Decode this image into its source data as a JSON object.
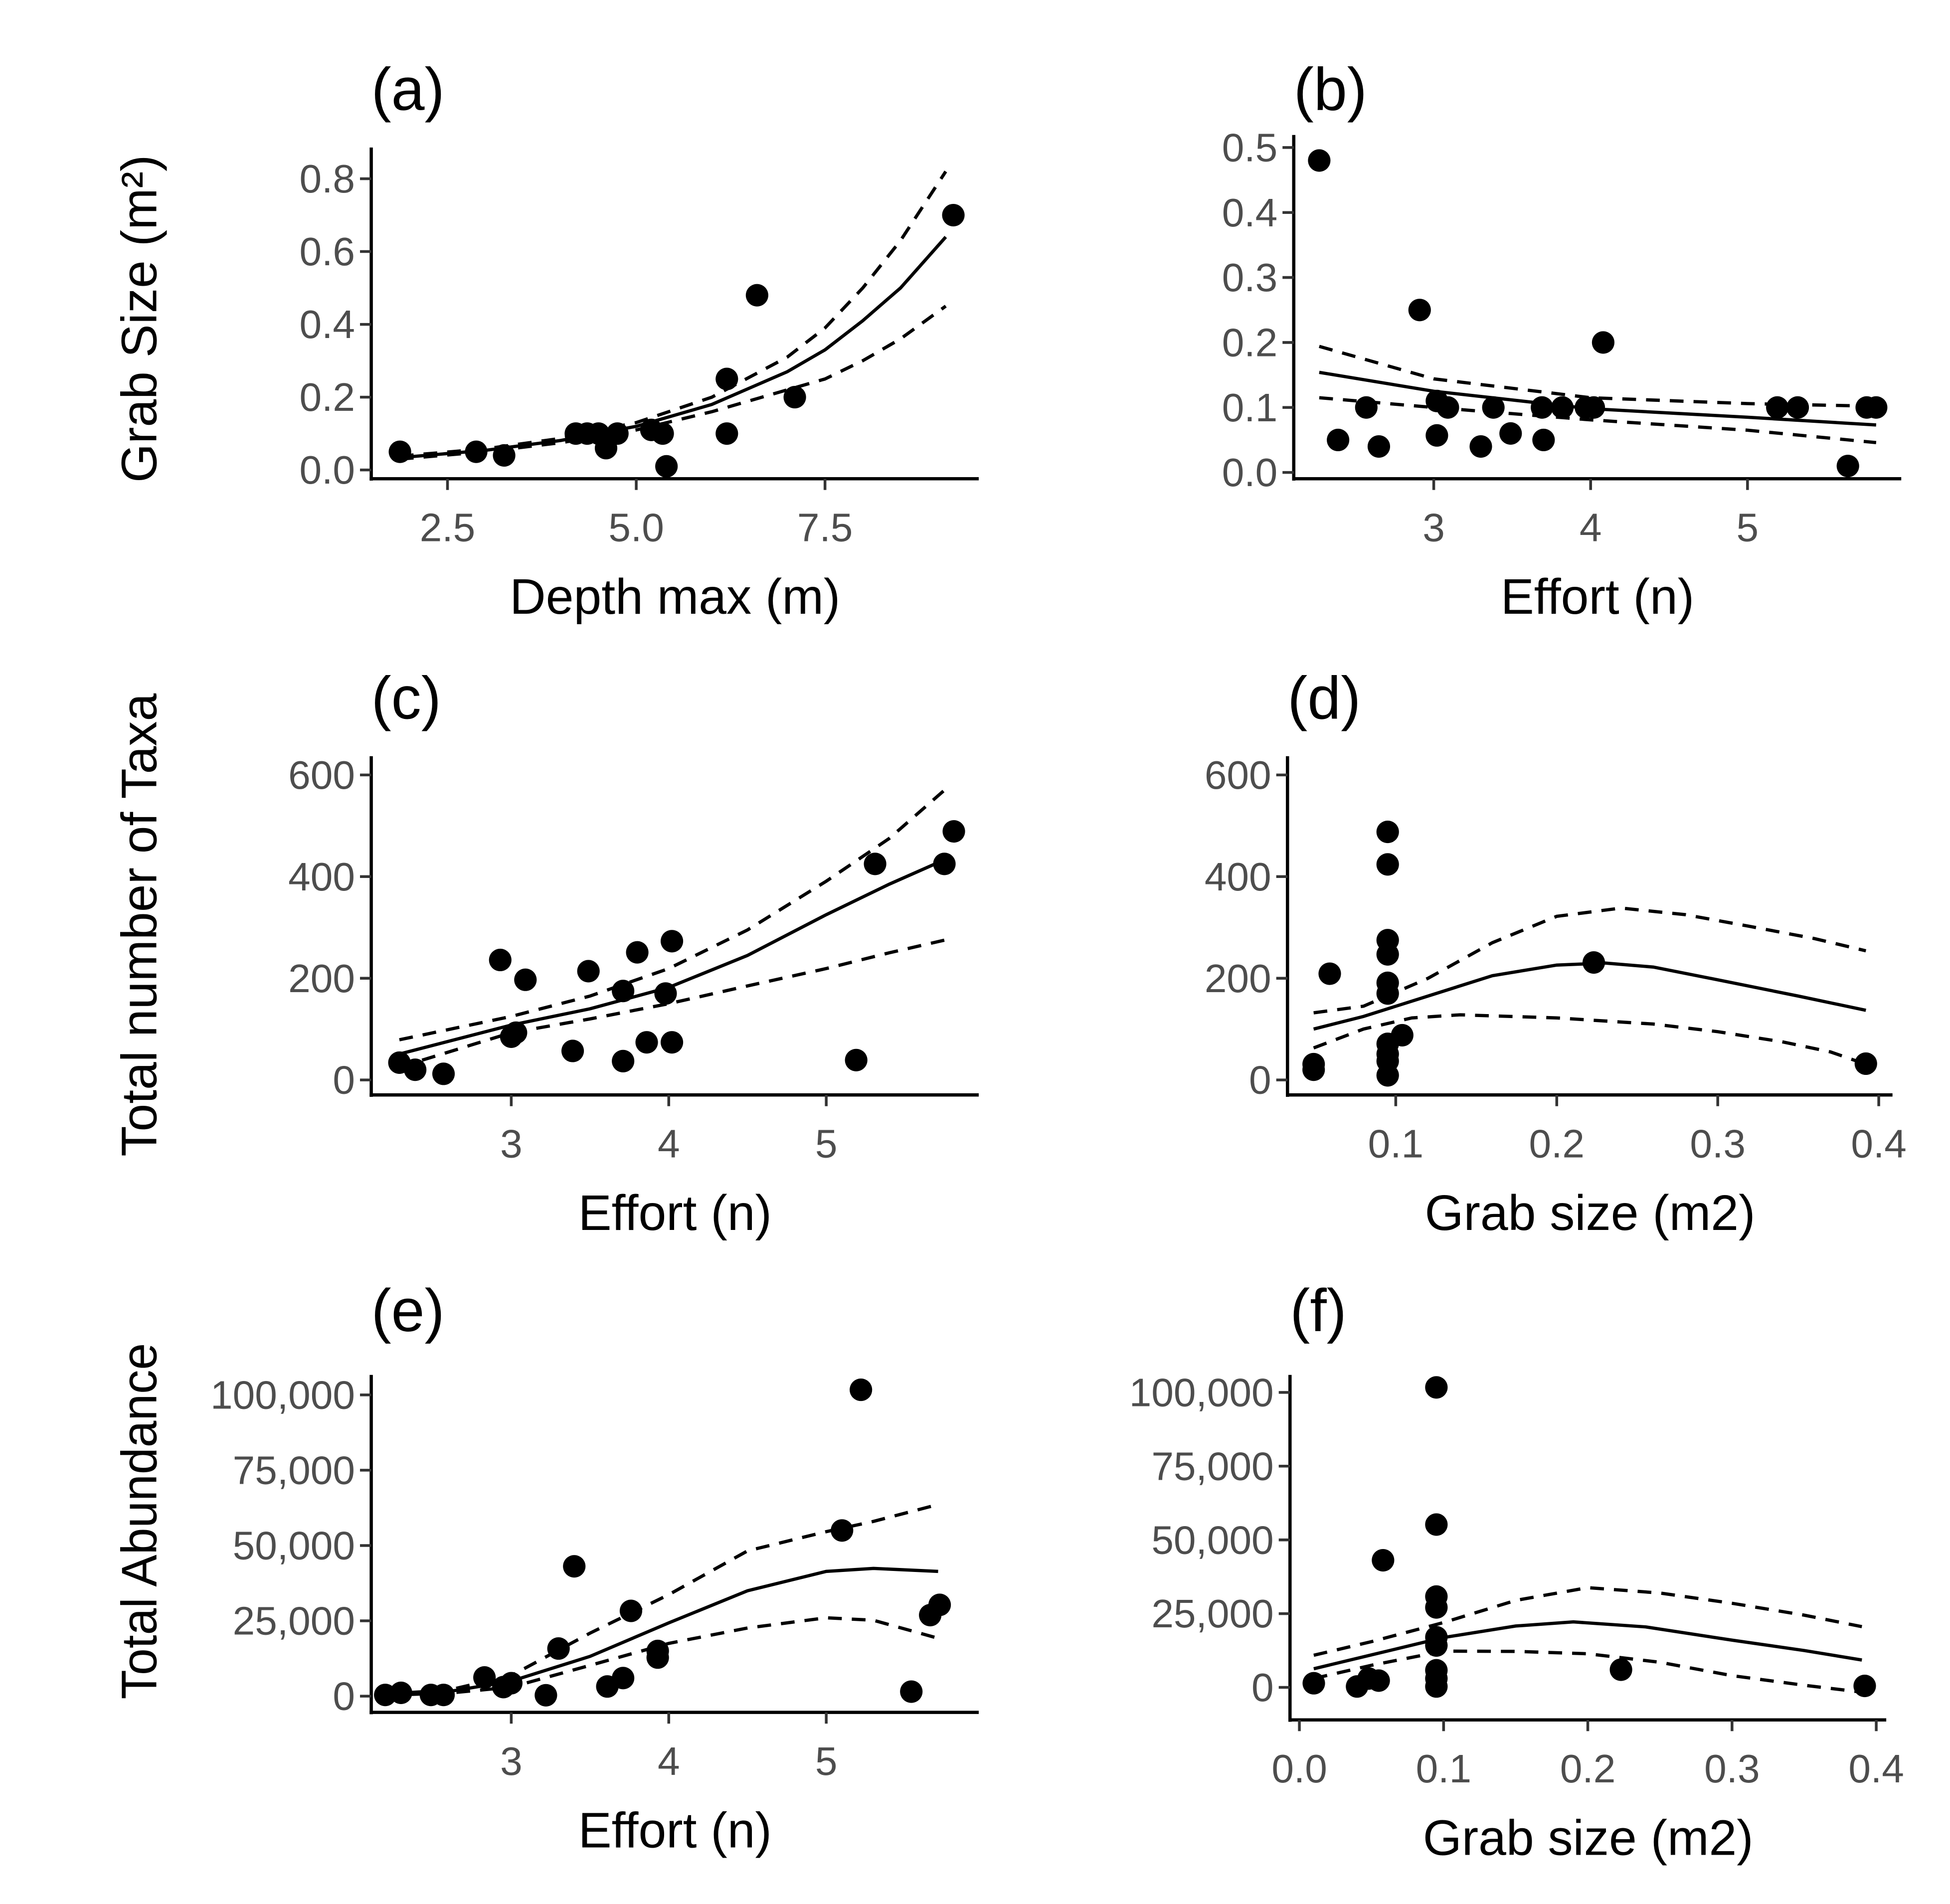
{
  "y_titles": {
    "row1": "Grab Size (m²)",
    "row2": "Total number of Taxa",
    "row3": "Total Abundance"
  },
  "colors": {
    "points": "#000000",
    "fit": "#000000",
    "tick_text": "#4d4d4d"
  },
  "chart_data": [
    {
      "type": "scatter",
      "panel_label": "(a)",
      "xlabel": "Depth max (m)",
      "ylabel": "Grab Size (m2)",
      "xticks": [
        2.5,
        5.0,
        7.5
      ],
      "xtick_labels": [
        "2.5",
        "5.0",
        "7.5"
      ],
      "yticks": [
        0,
        0.2,
        0.4,
        0.6,
        0.8
      ],
      "ytick_labels": [
        "0.0",
        "0.2",
        "0.4",
        "0.6",
        "0.8"
      ],
      "points": [
        [
          1.87,
          0.05
        ],
        [
          2.88,
          0.05
        ],
        [
          3.25,
          0.04
        ],
        [
          4.2,
          0.1
        ],
        [
          4.35,
          0.1
        ],
        [
          4.5,
          0.1
        ],
        [
          4.6,
          0.06
        ],
        [
          4.75,
          0.1
        ],
        [
          5.2,
          0.11
        ],
        [
          5.35,
          0.1
        ],
        [
          5.4,
          0.01
        ],
        [
          6.2,
          0.25
        ],
        [
          6.6,
          0.48
        ],
        [
          6.2,
          0.1
        ],
        [
          7.1,
          0.2
        ],
        [
          9.2,
          0.7
        ]
      ],
      "fit": [
        [
          1.87,
          0.034
        ],
        [
          3,
          0.054
        ],
        [
          4,
          0.081
        ],
        [
          5,
          0.12
        ],
        [
          6,
          0.18
        ],
        [
          7,
          0.27
        ],
        [
          7.5,
          0.33
        ],
        [
          8,
          0.41
        ],
        [
          8.5,
          0.5
        ],
        [
          9.1,
          0.64
        ]
      ],
      "fit_upper": [
        [
          1.87,
          0.038
        ],
        [
          3,
          0.058
        ],
        [
          4,
          0.087
        ],
        [
          5,
          0.13
        ],
        [
          6,
          0.2
        ],
        [
          7,
          0.31
        ],
        [
          7.5,
          0.39
        ],
        [
          8,
          0.5
        ],
        [
          8.5,
          0.63
        ],
        [
          9.1,
          0.82
        ]
      ],
      "fit_lower": [
        [
          1.87,
          0.03
        ],
        [
          3,
          0.05
        ],
        [
          4,
          0.075
        ],
        [
          5,
          0.11
        ],
        [
          6,
          0.16
        ],
        [
          7,
          0.22
        ],
        [
          7.5,
          0.25
        ],
        [
          8,
          0.3
        ],
        [
          8.5,
          0.36
        ],
        [
          9.1,
          0.45
        ]
      ]
    },
    {
      "type": "scatter",
      "panel_label": "(b)",
      "xlabel": "Effort (n)",
      "ylabel": "",
      "xticks": [
        3,
        4,
        5
      ],
      "xtick_labels": [
        "3",
        "4",
        "5"
      ],
      "yticks": [
        0,
        0.1,
        0.2,
        0.3,
        0.4,
        0.5
      ],
      "ytick_labels": [
        "0.0",
        "0.1",
        "0.2",
        "0.3",
        "0.4",
        "0.5"
      ],
      "points": [
        [
          2.27,
          0.48
        ],
        [
          2.39,
          0.05
        ],
        [
          2.57,
          0.1
        ],
        [
          2.65,
          0.04
        ],
        [
          2.91,
          0.25
        ],
        [
          3.02,
          0.11
        ],
        [
          3.02,
          0.057
        ],
        [
          3.09,
          0.1
        ],
        [
          3.3,
          0.04
        ],
        [
          3.38,
          0.1
        ],
        [
          3.49,
          0.06
        ],
        [
          3.69,
          0.1
        ],
        [
          3.7,
          0.05
        ],
        [
          3.82,
          0.1
        ],
        [
          3.97,
          0.1
        ],
        [
          4.08,
          0.2
        ],
        [
          4.02,
          0.1
        ],
        [
          5.19,
          0.1
        ],
        [
          5.32,
          0.1
        ],
        [
          5.64,
          0.01
        ],
        [
          5.76,
          0.1
        ],
        [
          5.82,
          0.1
        ]
      ],
      "fit": [
        [
          2.27,
          0.154
        ],
        [
          3,
          0.125
        ],
        [
          4,
          0.098
        ],
        [
          5,
          0.085
        ],
        [
          5.82,
          0.073
        ]
      ],
      "fit_upper": [
        [
          2.27,
          0.194
        ],
        [
          3,
          0.144
        ],
        [
          4,
          0.115
        ],
        [
          5,
          0.106
        ],
        [
          5.82,
          0.102
        ]
      ],
      "fit_lower": [
        [
          2.27,
          0.115
        ],
        [
          3,
          0.1
        ],
        [
          4,
          0.081
        ],
        [
          5,
          0.065
        ],
        [
          5.82,
          0.046
        ]
      ]
    },
    {
      "type": "scatter",
      "panel_label": "(c)",
      "xlabel": "Effort (n)",
      "ylabel": "Total number of Taxa",
      "xticks": [
        3,
        4,
        5
      ],
      "xtick_labels": [
        "3",
        "4",
        "5"
      ],
      "yticks": [
        0,
        200,
        400,
        600
      ],
      "ytick_labels": [
        "0",
        "200",
        "400",
        "600"
      ],
      "points": [
        [
          2.29,
          34
        ],
        [
          2.39,
          20
        ],
        [
          2.57,
          12
        ],
        [
          2.93,
          236
        ],
        [
          3.09,
          197
        ],
        [
          3.03,
          93
        ],
        [
          3.0,
          85
        ],
        [
          3.39,
          57
        ],
        [
          3.49,
          214
        ],
        [
          3.71,
          175
        ],
        [
          3.71,
          37
        ],
        [
          3.8,
          251
        ],
        [
          3.86,
          74
        ],
        [
          3.98,
          170
        ],
        [
          4.02,
          273
        ],
        [
          4.02,
          74
        ],
        [
          5.19,
          39
        ],
        [
          5.31,
          425
        ],
        [
          5.75,
          425
        ],
        [
          5.81,
          489
        ]
      ],
      "fit": [
        [
          2.29,
          51
        ],
        [
          3,
          108
        ],
        [
          3.5,
          140
        ],
        [
          4,
          182
        ],
        [
          4.5,
          245
        ],
        [
          5,
          325
        ],
        [
          5.4,
          385
        ],
        [
          5.75,
          433
        ]
      ],
      "fit_upper": [
        [
          2.29,
          79
        ],
        [
          3,
          125
        ],
        [
          3.5,
          165
        ],
        [
          4,
          219
        ],
        [
          4.5,
          295
        ],
        [
          5,
          391
        ],
        [
          5.4,
          475
        ],
        [
          5.75,
          570
        ]
      ],
      "fit_lower": [
        [
          2.29,
          25
        ],
        [
          3,
          93
        ],
        [
          3.5,
          120
        ],
        [
          4,
          150
        ],
        [
          4.5,
          185
        ],
        [
          5,
          219
        ],
        [
          5.4,
          250
        ],
        [
          5.75,
          275
        ]
      ]
    },
    {
      "type": "scatter",
      "panel_label": "(d)",
      "xlabel": "Grab size (m2)",
      "ylabel": "",
      "xticks": [
        0.1,
        0.2,
        0.3,
        0.4
      ],
      "xtick_labels": [
        "0.1",
        "0.2",
        "0.3",
        "0.4"
      ],
      "yticks": [
        0,
        200,
        400,
        600
      ],
      "ytick_labels": [
        "0",
        "200",
        "400",
        "600"
      ],
      "points": [
        [
          0.049,
          31
        ],
        [
          0.049,
          20
        ],
        [
          0.059,
          209
        ],
        [
          0.095,
          488
        ],
        [
          0.095,
          424
        ],
        [
          0.095,
          275
        ],
        [
          0.095,
          247
        ],
        [
          0.095,
          191
        ],
        [
          0.095,
          170
        ],
        [
          0.104,
          88
        ],
        [
          0.095,
          71
        ],
        [
          0.095,
          51
        ],
        [
          0.095,
          37
        ],
        [
          0.095,
          9
        ],
        [
          0.223,
          231
        ],
        [
          0.392,
          32
        ]
      ],
      "fit": [
        [
          0.049,
          100
        ],
        [
          0.08,
          125
        ],
        [
          0.12,
          165
        ],
        [
          0.16,
          205
        ],
        [
          0.2,
          226
        ],
        [
          0.23,
          230
        ],
        [
          0.26,
          222
        ],
        [
          0.3,
          197
        ],
        [
          0.35,
          165
        ],
        [
          0.392,
          137
        ]
      ],
      "fit_upper": [
        [
          0.049,
          132
        ],
        [
          0.08,
          145
        ],
        [
          0.12,
          200
        ],
        [
          0.16,
          270
        ],
        [
          0.2,
          322
        ],
        [
          0.24,
          338
        ],
        [
          0.28,
          325
        ],
        [
          0.32,
          302
        ],
        [
          0.36,
          278
        ],
        [
          0.392,
          254
        ]
      ],
      "fit_lower": [
        [
          0.049,
          63
        ],
        [
          0.08,
          100
        ],
        [
          0.11,
          122
        ],
        [
          0.14,
          128
        ],
        [
          0.2,
          122
        ],
        [
          0.26,
          110
        ],
        [
          0.3,
          95
        ],
        [
          0.34,
          75
        ],
        [
          0.37,
          55
        ],
        [
          0.392,
          31
        ]
      ]
    },
    {
      "type": "scatter",
      "panel_label": "(e)",
      "xlabel": "Effort (n)",
      "ylabel": "Total Abundance",
      "xticks": [
        3,
        4,
        5
      ],
      "xtick_labels": [
        "3",
        "4",
        "5"
      ],
      "yticks": [
        0,
        25000,
        50000,
        75000,
        100000
      ],
      "ytick_labels": [
        "0",
        "25,000",
        "50,000",
        "75,000",
        "100,000"
      ],
      "points": [
        [
          2.2,
          400
        ],
        [
          2.3,
          1100
        ],
        [
          2.49,
          400
        ],
        [
          2.57,
          400
        ],
        [
          2.83,
          6200
        ],
        [
          2.95,
          3000
        ],
        [
          3.0,
          4300
        ],
        [
          3.22,
          300
        ],
        [
          3.3,
          15800
        ],
        [
          3.4,
          43100
        ],
        [
          3.61,
          3200
        ],
        [
          3.71,
          6000
        ],
        [
          3.76,
          28300
        ],
        [
          3.93,
          15000
        ],
        [
          3.93,
          12800
        ],
        [
          5.1,
          55000
        ],
        [
          5.22,
          101700
        ],
        [
          5.54,
          1500
        ],
        [
          5.66,
          26900
        ],
        [
          5.72,
          30300
        ]
      ],
      "fit": [
        [
          2.2,
          500
        ],
        [
          2.6,
          1500
        ],
        [
          3,
          5000
        ],
        [
          3.5,
          13200
        ],
        [
          4,
          24300
        ],
        [
          4.5,
          35000
        ],
        [
          5,
          41400
        ],
        [
          5.3,
          42400
        ],
        [
          5.71,
          41400
        ]
      ],
      "fit_upper": [
        [
          2.2,
          700
        ],
        [
          2.6,
          2000
        ],
        [
          3,
          6800
        ],
        [
          3.5,
          20900
        ],
        [
          4,
          33700
        ],
        [
          4.5,
          48200
        ],
        [
          5,
          54600
        ],
        [
          5.3,
          58000
        ],
        [
          5.71,
          63600
        ]
      ],
      "fit_lower": [
        [
          2.2,
          300
        ],
        [
          2.6,
          1000
        ],
        [
          3,
          3000
        ],
        [
          3.5,
          10200
        ],
        [
          4,
          17500
        ],
        [
          4.5,
          22600
        ],
        [
          5,
          26000
        ],
        [
          5.3,
          25200
        ],
        [
          5.71,
          19200
        ]
      ]
    },
    {
      "type": "scatter",
      "panel_label": "(f)",
      "xlabel": "Grab size (m2)",
      "ylabel": "",
      "xticks": [
        0,
        0.1,
        0.2,
        0.3,
        0.4
      ],
      "xtick_labels": [
        "0.0",
        "0.1",
        "0.2",
        "0.3",
        "0.4"
      ],
      "yticks": [
        0,
        25000,
        50000,
        75000,
        100000
      ],
      "ytick_labels": [
        "0",
        "25,000",
        "50,000",
        "75,000",
        "100,000"
      ],
      "points": [
        [
          0.01,
          1400
        ],
        [
          0.04,
          300
        ],
        [
          0.048,
          3000
        ],
        [
          0.055,
          2300
        ],
        [
          0.058,
          43100
        ],
        [
          0.095,
          101700
        ],
        [
          0.095,
          55200
        ],
        [
          0.095,
          30800
        ],
        [
          0.095,
          27100
        ],
        [
          0.095,
          17000
        ],
        [
          0.095,
          14200
        ],
        [
          0.095,
          5800
        ],
        [
          0.095,
          3000
        ],
        [
          0.095,
          300
        ],
        [
          0.223,
          6000
        ],
        [
          0.392,
          500
        ]
      ],
      "fit": [
        [
          0.01,
          6300
        ],
        [
          0.05,
          11000
        ],
        [
          0.1,
          16900
        ],
        [
          0.15,
          20800
        ],
        [
          0.19,
          22200
        ],
        [
          0.24,
          20500
        ],
        [
          0.3,
          16000
        ],
        [
          0.35,
          12500
        ],
        [
          0.39,
          9300
        ]
      ],
      "fit_upper": [
        [
          0.01,
          10900
        ],
        [
          0.05,
          15500
        ],
        [
          0.1,
          22000
        ],
        [
          0.15,
          29500
        ],
        [
          0.2,
          33800
        ],
        [
          0.25,
          32000
        ],
        [
          0.3,
          28500
        ],
        [
          0.35,
          24500
        ],
        [
          0.39,
          20600
        ]
      ],
      "fit_lower": [
        [
          0.01,
          3000
        ],
        [
          0.05,
          7500
        ],
        [
          0.1,
          12300
        ],
        [
          0.15,
          12200
        ],
        [
          0.2,
          11400
        ],
        [
          0.25,
          8500
        ],
        [
          0.3,
          4000
        ],
        [
          0.35,
          700
        ],
        [
          0.39,
          -1600
        ]
      ]
    }
  ]
}
